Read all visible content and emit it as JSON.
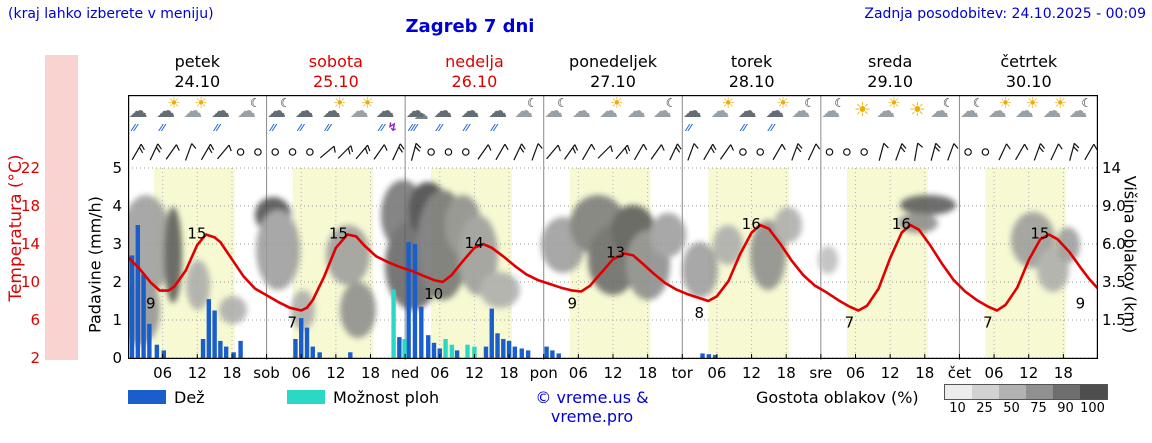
{
  "header": {
    "hint": "(kraj lahko izberete v meniju)",
    "title": "Zagreb 7 dni",
    "updated": "Zadnja posodobitev: 24.10.2025 - 00:09"
  },
  "days": [
    {
      "name": "petek",
      "date": "24.10",
      "red": false
    },
    {
      "name": "sobota",
      "date": "25.10",
      "red": true
    },
    {
      "name": "nedelja",
      "date": "26.10",
      "red": true
    },
    {
      "name": "ponedeljek",
      "date": "27.10",
      "red": false
    },
    {
      "name": "torek",
      "date": "28.10",
      "red": false
    },
    {
      "name": "sreda",
      "date": "29.10",
      "red": false
    },
    {
      "name": "četrtek",
      "date": "30.10",
      "red": false
    }
  ],
  "axes": {
    "temp_label": "Temperatura (°C)",
    "temp_ticks": [
      "22",
      "18",
      "14",
      "10",
      "6",
      "2"
    ],
    "precip_label": "Padavine (mm/h)",
    "precip_ticks": [
      "5",
      "4",
      "3",
      "2",
      "1",
      "0"
    ],
    "cloud_label": "Višina oblakov (km)",
    "cloud_ticks": [
      "14",
      "9.0",
      "6.0",
      "3.5",
      "1.5"
    ]
  },
  "x_ticks": [
    [
      6,
      "06"
    ],
    [
      12,
      "12"
    ],
    [
      18,
      "18"
    ],
    [
      24,
      "sob"
    ],
    [
      30,
      "06"
    ],
    [
      36,
      "12"
    ],
    [
      42,
      "18"
    ],
    [
      48,
      "ned"
    ],
    [
      54,
      "06"
    ],
    [
      60,
      "12"
    ],
    [
      66,
      "18"
    ],
    [
      72,
      "pon"
    ],
    [
      78,
      "06"
    ],
    [
      84,
      "12"
    ],
    [
      90,
      "18"
    ],
    [
      96,
      "tor"
    ],
    [
      102,
      "06"
    ],
    [
      108,
      "12"
    ],
    [
      114,
      "18"
    ],
    [
      120,
      "sre"
    ],
    [
      126,
      "06"
    ],
    [
      132,
      "12"
    ],
    [
      138,
      "18"
    ],
    [
      144,
      "čet"
    ],
    [
      150,
      "06"
    ],
    [
      156,
      "12"
    ],
    [
      162,
      "18"
    ]
  ],
  "legend": {
    "rain": "Dež",
    "showers": "Možnost ploh",
    "copyright": "© vreme.us & vreme.pro",
    "cloud_density": "Gostota oblakov (%)",
    "density_labels": [
      "10",
      "25",
      "50",
      "75",
      "90",
      "100"
    ],
    "density_colors": [
      "#ececec",
      "#d2d2d2",
      "#b2b2b2",
      "#909090",
      "#6e6e6e",
      "#4e4e4e"
    ]
  },
  "colors": {
    "blue_text": "#0000d2",
    "red": "#dd0000",
    "temp_curve": "#e00000",
    "rain_bar": "#1a5ecc",
    "shower_bar": "#2bd8c6",
    "day_band": "#f6f9d2",
    "pink_strip": "#f8d3cf"
  },
  "icon_glyphs": {
    "sun": "☀",
    "cloud": "☁",
    "moon": "☾",
    "drops": "⁄⁄",
    "drops_heavy": "⁄⁄⁄",
    "bolt": "↯"
  },
  "icons": [
    "rain",
    "rain-sun",
    "sun-cloud",
    "rain",
    "moon-cloud",
    "moon-rain",
    "rain",
    "rain-sun",
    "sun-cloud",
    "storm",
    "heavy-rain",
    "rain",
    "rain",
    "rain",
    "moon-cloud",
    "moon-cloud",
    "cloud",
    "sun-cloud",
    "cloud",
    "moon-cloud",
    "rain",
    "sun-cloud",
    "rain",
    "rain-sun",
    "moon-cloud",
    "moon-cloud",
    "sun",
    "sun-cloud",
    "sun",
    "moon-cloud",
    "moon-cloud",
    "sun-cloud",
    "sun-cloud",
    "sun-cloud",
    "moon-cloud"
  ],
  "wind": [
    [
      1.5,
      -60,
      2
    ],
    [
      4.5,
      -65,
      2
    ],
    [
      7.5,
      -55,
      1
    ],
    [
      10.5,
      -70,
      1
    ],
    [
      13.5,
      -60,
      2
    ],
    [
      16.5,
      -50,
      1
    ],
    [
      19.5,
      "c"
    ],
    [
      22.5,
      "c"
    ],
    [
      25.5,
      "c"
    ],
    [
      28.5,
      "c"
    ],
    [
      31.5,
      "c"
    ],
    [
      34.5,
      -40,
      1
    ],
    [
      37.5,
      -45,
      2
    ],
    [
      40.5,
      -50,
      2
    ],
    [
      43.5,
      -55,
      1
    ],
    [
      46.5,
      -65,
      2
    ],
    [
      49.5,
      -75,
      2
    ],
    [
      52.5,
      "c"
    ],
    [
      55.5,
      "c"
    ],
    [
      58.5,
      "c"
    ],
    [
      61.5,
      -55,
      1
    ],
    [
      64.5,
      -60,
      1
    ],
    [
      67.5,
      -65,
      2
    ],
    [
      70.5,
      -70,
      1
    ],
    [
      73.5,
      -50,
      1
    ],
    [
      76.5,
      -55,
      2
    ],
    [
      79.5,
      -60,
      1
    ],
    [
      82.5,
      -45,
      1
    ],
    [
      85.5,
      -50,
      2
    ],
    [
      88.5,
      -60,
      1
    ],
    [
      91.5,
      -55,
      1
    ],
    [
      94.5,
      -65,
      2
    ],
    [
      97.5,
      -70,
      1
    ],
    [
      100.5,
      -60,
      2
    ],
    [
      103.5,
      -55,
      1
    ],
    [
      106.5,
      "c"
    ],
    [
      109.5,
      "c"
    ],
    [
      112.5,
      -60,
      1
    ],
    [
      115.5,
      -70,
      2
    ],
    [
      118.5,
      -65,
      1
    ],
    [
      121.5,
      "c"
    ],
    [
      124.5,
      "c"
    ],
    [
      127.5,
      "c"
    ],
    [
      130.5,
      -75,
      1
    ],
    [
      133.5,
      -70,
      2
    ],
    [
      136.5,
      -80,
      1
    ],
    [
      139.5,
      -75,
      2
    ],
    [
      142.5,
      -70,
      1
    ],
    [
      145.5,
      "c"
    ],
    [
      148.5,
      "c"
    ],
    [
      151.5,
      -65,
      1
    ],
    [
      154.5,
      -60,
      1
    ],
    [
      157.5,
      -70,
      2
    ],
    [
      160.5,
      -65,
      1
    ],
    [
      163.5,
      -75,
      2
    ],
    [
      166.5,
      -60,
      1
    ]
  ],
  "chart_data": {
    "type": "line",
    "title": "Zagreb 7 dni",
    "x_axis": "hours over 7 days (0-168, ticks every 6h)",
    "day_band_hours": [
      4.5,
      18.5
    ],
    "y_precip_range": [
      0,
      5
    ],
    "y_temp_ticks": [
      2,
      6,
      10,
      14,
      18,
      22
    ],
    "y2_cloud_km_ticks": [
      1.5,
      3.5,
      6.0,
      9.0,
      14
    ],
    "temperature": {
      "name": "Temperatura (°C)",
      "points": [
        [
          0,
          12.6
        ],
        [
          2,
          11.4
        ],
        [
          4,
          9.9
        ],
        [
          5.5,
          9.1
        ],
        [
          7,
          9.1
        ],
        [
          8,
          9.5
        ],
        [
          10,
          11.2
        ],
        [
          12,
          13.9
        ],
        [
          13.5,
          15
        ],
        [
          15,
          14.7
        ],
        [
          16,
          14.2
        ],
        [
          18,
          12.4
        ],
        [
          20,
          10.6
        ],
        [
          22,
          9.3
        ],
        [
          24,
          8.6
        ],
        [
          26,
          7.9
        ],
        [
          28,
          7.3
        ],
        [
          30,
          7
        ],
        [
          31,
          7.3
        ],
        [
          32,
          8.1
        ],
        [
          34,
          10.6
        ],
        [
          36,
          13.6
        ],
        [
          38,
          15
        ],
        [
          39.5,
          14.8
        ],
        [
          41,
          13.8
        ],
        [
          43,
          12.7
        ],
        [
          45,
          12.1
        ],
        [
          47,
          11.6
        ],
        [
          49,
          11.2
        ],
        [
          51,
          10.7
        ],
        [
          53,
          10.2
        ],
        [
          54.5,
          10
        ],
        [
          56,
          10.7
        ],
        [
          58,
          12.2
        ],
        [
          60,
          13.6
        ],
        [
          61.5,
          14
        ],
        [
          63,
          13.6
        ],
        [
          65,
          12.7
        ],
        [
          67,
          11.7
        ],
        [
          69,
          10.8
        ],
        [
          71,
          10.2
        ],
        [
          73,
          9.8
        ],
        [
          75,
          9.4
        ],
        [
          77,
          9.1
        ],
        [
          78.5,
          9
        ],
        [
          80,
          9.6
        ],
        [
          82,
          11
        ],
        [
          84,
          12.4
        ],
        [
          86,
          13
        ],
        [
          87.5,
          12.8
        ],
        [
          89,
          12
        ],
        [
          91,
          10.9
        ],
        [
          93,
          9.9
        ],
        [
          95,
          9.2
        ],
        [
          97,
          8.7
        ],
        [
          99,
          8.3
        ],
        [
          100.5,
          8
        ],
        [
          102,
          8.5
        ],
        [
          104,
          10.1
        ],
        [
          106,
          12.9
        ],
        [
          108,
          15.2
        ],
        [
          109.5,
          16
        ],
        [
          111,
          15.6
        ],
        [
          113,
          14
        ],
        [
          115,
          12.2
        ],
        [
          117,
          10.7
        ],
        [
          119,
          9.6
        ],
        [
          121,
          8.9
        ],
        [
          123,
          8.1
        ],
        [
          125,
          7.4
        ],
        [
          126.5,
          7
        ],
        [
          128,
          7.5
        ],
        [
          130,
          9.3
        ],
        [
          132,
          12.5
        ],
        [
          134,
          15.2
        ],
        [
          135.5,
          16
        ],
        [
          137,
          15.5
        ],
        [
          139,
          13.8
        ],
        [
          141,
          11.9
        ],
        [
          143,
          10.2
        ],
        [
          145,
          9
        ],
        [
          147,
          8.1
        ],
        [
          149,
          7.4
        ],
        [
          150.5,
          7
        ],
        [
          152,
          7.6
        ],
        [
          154,
          9.4
        ],
        [
          156,
          12.3
        ],
        [
          158,
          14.5
        ],
        [
          159.5,
          15
        ],
        [
          161,
          14.5
        ],
        [
          163,
          13.2
        ],
        [
          165,
          11.5
        ],
        [
          166.5,
          10.3
        ],
        [
          168,
          9.3
        ]
      ],
      "extreme_labels": [
        [
          5.5,
          9,
          "min"
        ],
        [
          13.5,
          15,
          "max"
        ],
        [
          30,
          7,
          "min"
        ],
        [
          38,
          15,
          "max"
        ],
        [
          54.5,
          10,
          "min"
        ],
        [
          61.5,
          14,
          "max"
        ],
        [
          78.5,
          9,
          "min"
        ],
        [
          86,
          13,
          "max"
        ],
        [
          100.5,
          8,
          "min"
        ],
        [
          109.5,
          16,
          "max"
        ],
        [
          126.5,
          7,
          "min"
        ],
        [
          135.5,
          16,
          "max"
        ],
        [
          150.5,
          7,
          "min"
        ],
        [
          159.5,
          15,
          "max"
        ],
        [
          166.5,
          9,
          "min"
        ]
      ]
    },
    "rain_mm_h": {
      "name": "Dež",
      "bars": [
        [
          0.7,
          2.7
        ],
        [
          1.7,
          3.5
        ],
        [
          2.7,
          2.2
        ],
        [
          3.7,
          0.9
        ],
        [
          5,
          0.35
        ],
        [
          6.2,
          0.2
        ],
        [
          13,
          0.5
        ],
        [
          14,
          1.55
        ],
        [
          15,
          1.25
        ],
        [
          16,
          0.45
        ],
        [
          17,
          0.3
        ],
        [
          18.3,
          0.15
        ],
        [
          19.5,
          0.45
        ],
        [
          29,
          0.5
        ],
        [
          30,
          1.05
        ],
        [
          31,
          0.8
        ],
        [
          32,
          0.3
        ],
        [
          33.2,
          0.15
        ],
        [
          38.5,
          0.15
        ],
        [
          47,
          0.55
        ],
        [
          48.6,
          3.05
        ],
        [
          49.7,
          3.0
        ],
        [
          50.8,
          1.35
        ],
        [
          52,
          0.6
        ],
        [
          53,
          0.4
        ],
        [
          54,
          0.25
        ],
        [
          57,
          0.2
        ],
        [
          62,
          0.3
        ],
        [
          63,
          1.3
        ],
        [
          64,
          0.65
        ],
        [
          65,
          0.5
        ],
        [
          66,
          0.45
        ],
        [
          67,
          0.3
        ],
        [
          68.2,
          0.25
        ],
        [
          69.3,
          0.2
        ],
        [
          72.5,
          0.3
        ],
        [
          73.5,
          0.2
        ],
        [
          74.6,
          0.12
        ],
        [
          99.5,
          0.12
        ],
        [
          100.6,
          0.1
        ],
        [
          101.7,
          0.08
        ]
      ]
    },
    "showers_mm_h": {
      "name": "Možnost ploh",
      "bars": [
        [
          46,
          1.8
        ],
        [
          47.9,
          0.5
        ],
        [
          55,
          0.5
        ],
        [
          56.1,
          0.35
        ],
        [
          58.8,
          0.35
        ],
        [
          60,
          0.3
        ]
      ]
    },
    "clouds": {
      "name": "Gostota oblakov (%)",
      "blobs": [
        [
          18,
          150,
          26,
          50,
          "#9a9a9a"
        ],
        [
          12,
          215,
          20,
          35,
          "#8f8f8f"
        ],
        [
          45,
          160,
          9,
          48,
          "#555555"
        ],
        [
          70,
          190,
          12,
          25,
          "#aaaaaa"
        ],
        [
          105,
          215,
          14,
          14,
          "#aaaaaa"
        ],
        [
          145,
          120,
          18,
          18,
          "#4a4a4a"
        ],
        [
          150,
          155,
          22,
          40,
          "#999999"
        ],
        [
          175,
          215,
          12,
          20,
          "#aaaaaa"
        ],
        [
          220,
          160,
          22,
          30,
          "#9a9a9a"
        ],
        [
          230,
          215,
          18,
          28,
          "#8a8a8a"
        ],
        [
          275,
          120,
          22,
          35,
          "#707070"
        ],
        [
          285,
          170,
          28,
          45,
          "#606060"
        ],
        [
          300,
          115,
          20,
          28,
          "#404040"
        ],
        [
          315,
          150,
          26,
          55,
          "#707070"
        ],
        [
          335,
          130,
          18,
          30,
          "#8a8a8a"
        ],
        [
          350,
          160,
          20,
          40,
          "#999999"
        ],
        [
          372,
          195,
          20,
          18,
          "#aaaaaa"
        ],
        [
          435,
          150,
          22,
          28,
          "#999999"
        ],
        [
          470,
          130,
          28,
          30,
          "#777777"
        ],
        [
          485,
          165,
          25,
          35,
          "#666666"
        ],
        [
          505,
          135,
          22,
          25,
          "#555555"
        ],
        [
          520,
          170,
          22,
          35,
          "#888888"
        ],
        [
          540,
          140,
          18,
          22,
          "#999999"
        ],
        [
          572,
          175,
          18,
          28,
          "#999999"
        ],
        [
          600,
          150,
          15,
          20,
          "#aaaaaa"
        ],
        [
          640,
          160,
          18,
          35,
          "#8a8a8a"
        ],
        [
          660,
          130,
          14,
          18,
          "#aaaaaa"
        ],
        [
          700,
          165,
          10,
          14,
          "#bbbbbb"
        ],
        [
          800,
          110,
          28,
          10,
          "#555555"
        ],
        [
          790,
          128,
          20,
          10,
          "#888888"
        ],
        [
          905,
          145,
          22,
          28,
          "#999999"
        ],
        [
          925,
          175,
          16,
          22,
          "#aaaaaa"
        ],
        [
          940,
          150,
          12,
          18,
          "#999999"
        ]
      ]
    }
  }
}
